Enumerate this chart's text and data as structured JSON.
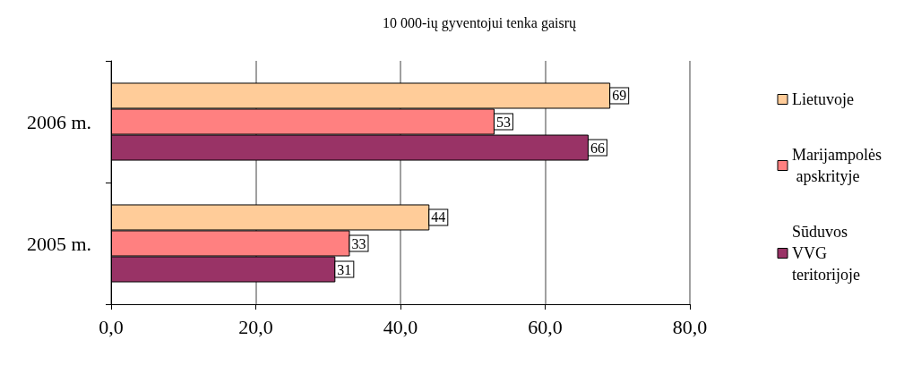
{
  "chart_data": {
    "type": "bar",
    "orientation": "horizontal",
    "title": "10 000-ių gyventojui tenka gaisrų",
    "categories": [
      "2006 m.",
      "2005 m."
    ],
    "series": [
      {
        "name": "Lietuvoje",
        "color": "#ffcc99",
        "values": [
          69,
          44
        ]
      },
      {
        "name": "Marijampolės apskrityje",
        "color": "#ff8080",
        "values": [
          53,
          33
        ]
      },
      {
        "name": "Sūduvos VVG teritorijoje",
        "color": "#993366",
        "values": [
          66,
          31
        ]
      }
    ],
    "xlim": [
      0,
      80
    ],
    "xticks": [
      {
        "value": 0,
        "label": "0,0"
      },
      {
        "value": 20,
        "label": "20,0"
      },
      {
        "value": 40,
        "label": "40,0"
      },
      {
        "value": 60,
        "label": "60,0"
      },
      {
        "value": 80,
        "label": "80,0"
      }
    ],
    "grid": "x",
    "legend": "right",
    "data_labels": true
  }
}
